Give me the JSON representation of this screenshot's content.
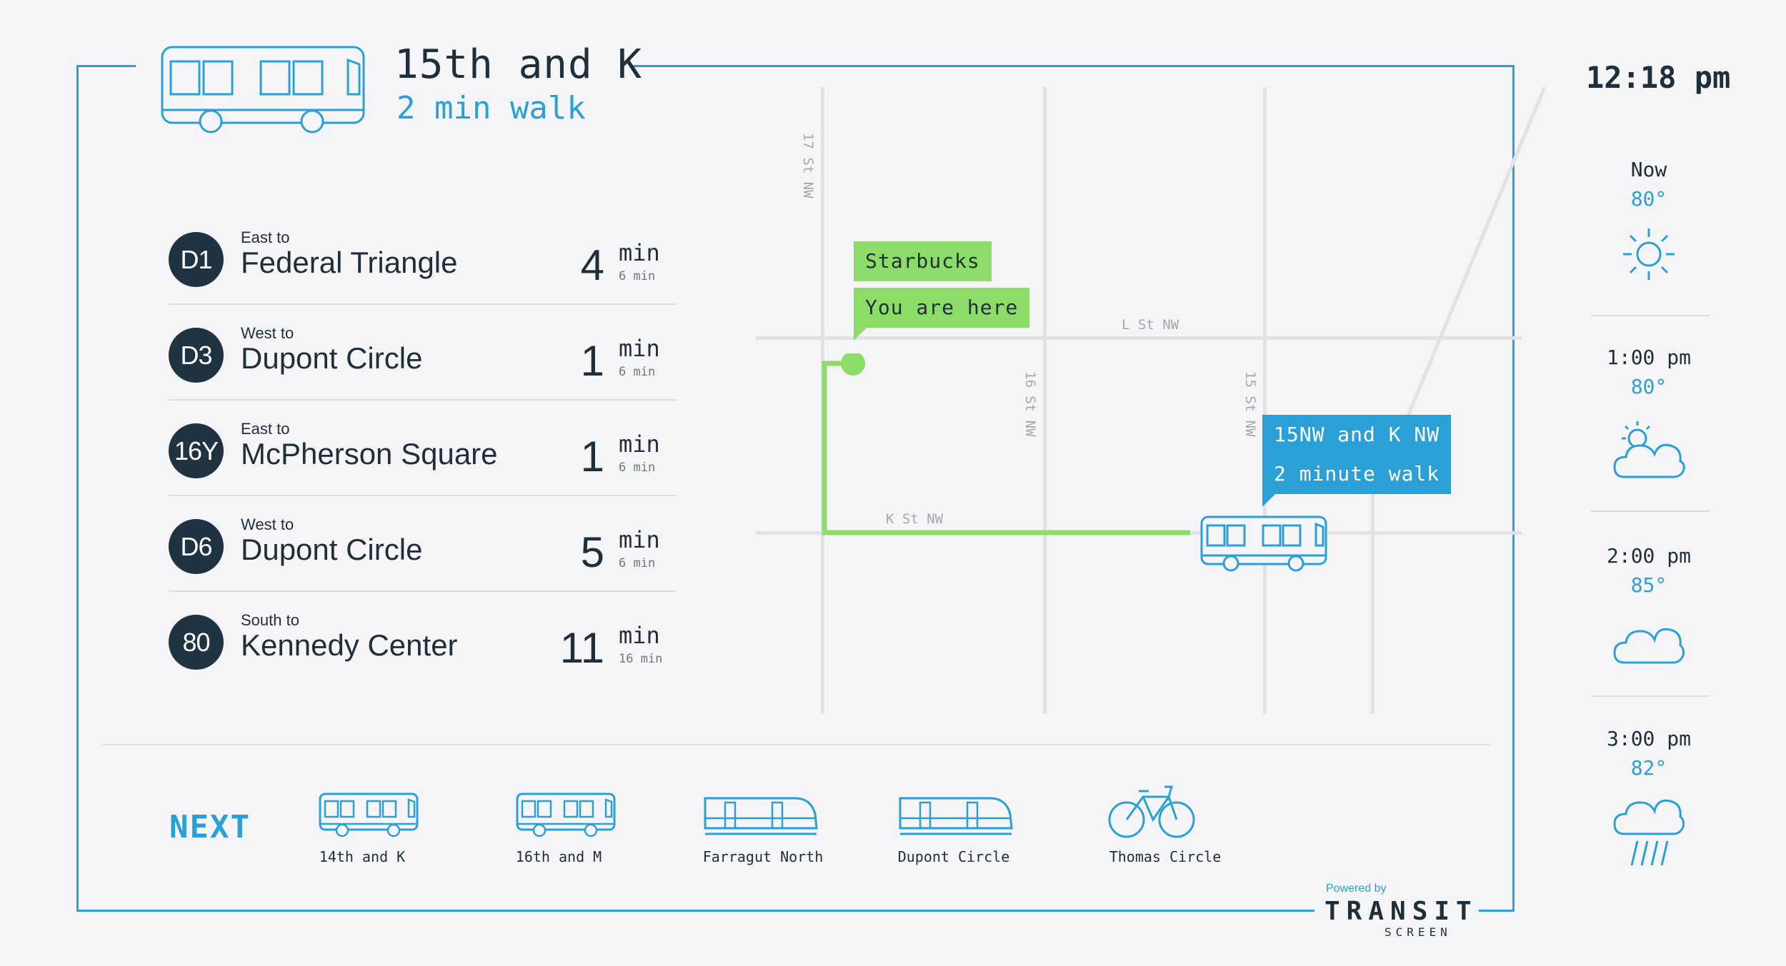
{
  "header": {
    "stop_name": "15th and K",
    "walk_time": "2 min walk",
    "clock": "12:18 pm"
  },
  "routes": [
    {
      "number": "D1",
      "direction": "East to",
      "destination": "Federal Triangle",
      "minutes": "4",
      "unit": "min",
      "next": "6 min"
    },
    {
      "number": "D3",
      "direction": "West to",
      "destination": "Dupont Circle",
      "minutes": "1",
      "unit": "min",
      "next": "6 min"
    },
    {
      "number": "16Y",
      "direction": "East to",
      "destination": "McPherson Square",
      "minutes": "1",
      "unit": "min",
      "next": "6 min"
    },
    {
      "number": "D6",
      "direction": "West to",
      "destination": "Dupont Circle",
      "minutes": "5",
      "unit": "min",
      "next": "6 min"
    },
    {
      "number": "80",
      "direction": "South to",
      "destination": "Kennedy Center",
      "minutes": "11",
      "unit": "min",
      "next": "16 min"
    }
  ],
  "map": {
    "streets": {
      "st17": "17 St NW",
      "st16": "16 St NW",
      "st15": "15 St NW",
      "lst": "L St NW",
      "kst": "K St NW"
    },
    "origin_place": "Starbucks",
    "origin_label": "You are here",
    "dest_stop": "15NW and K NW",
    "dest_walk": "2 minute walk",
    "route_color": "#8ddc6a",
    "accent_color": "#2aa0d6"
  },
  "next": {
    "label": "NEXT",
    "items": [
      {
        "label": "14th and K",
        "icon": "bus-icon"
      },
      {
        "label": "16th and M",
        "icon": "bus-icon"
      },
      {
        "label": "Farragut North",
        "icon": "train-icon"
      },
      {
        "label": "Dupont Circle",
        "icon": "train-icon"
      },
      {
        "label": "Thomas Circle",
        "icon": "bike-icon"
      }
    ]
  },
  "weather": [
    {
      "time": "Now",
      "temp": "80°",
      "icon": "sun-icon"
    },
    {
      "time": "1:00 pm",
      "temp": "80°",
      "icon": "partly-cloudy-icon"
    },
    {
      "time": "2:00 pm",
      "temp": "85°",
      "icon": "cloud-icon"
    },
    {
      "time": "3:00 pm",
      "temp": "82°",
      "icon": "rain-icon"
    }
  ],
  "footer": {
    "powered_by": "Powered by",
    "brand": "TRANSIT",
    "brand_sub": "SCREEN"
  }
}
